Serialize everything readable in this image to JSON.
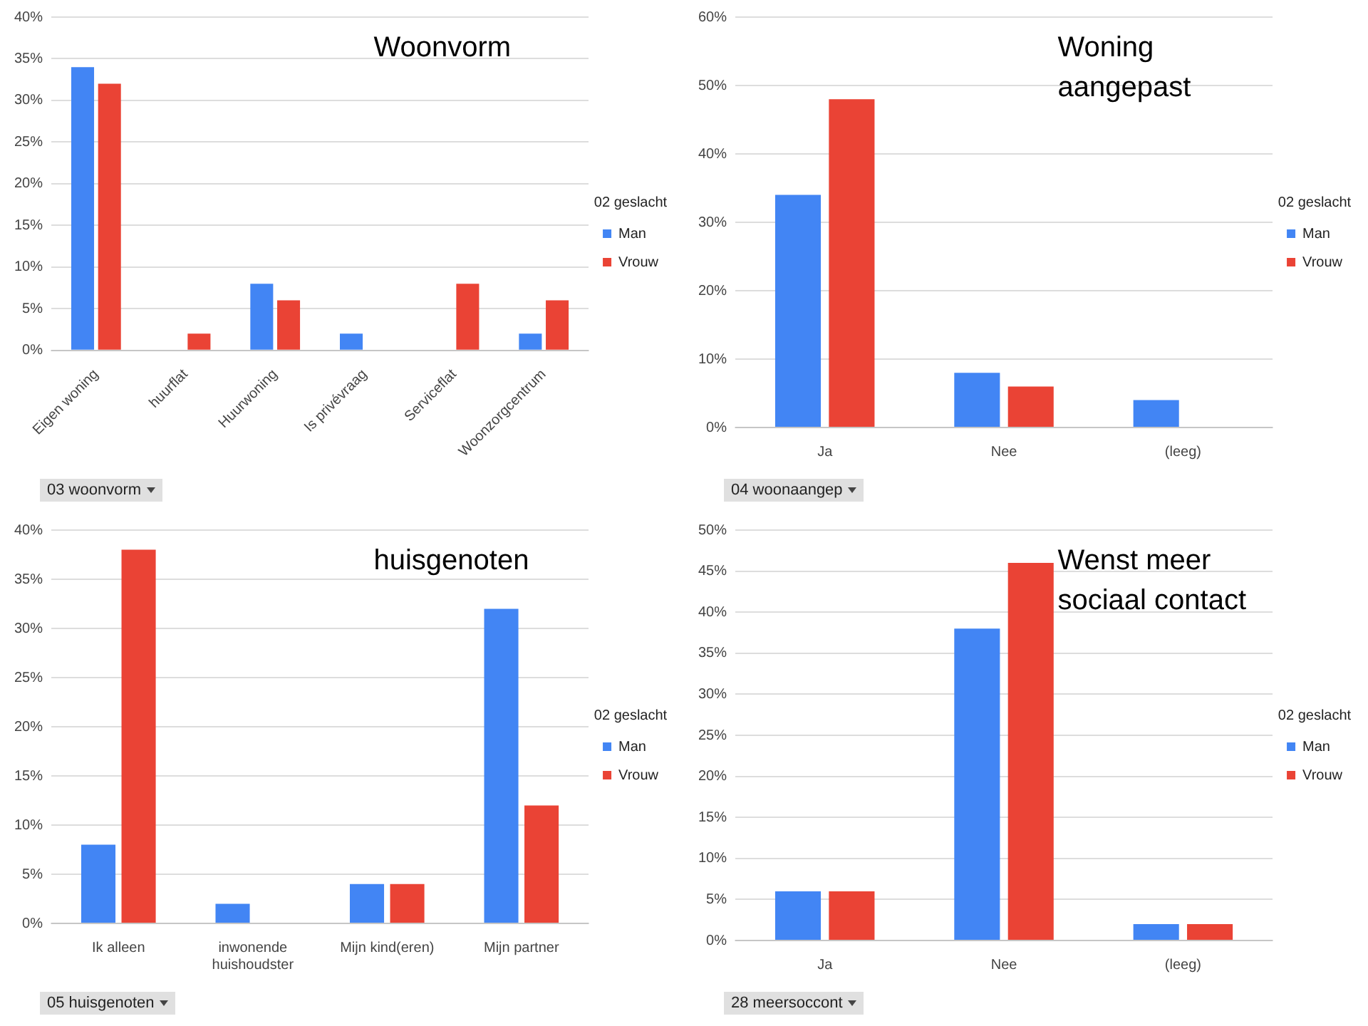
{
  "chart_data": [
    {
      "type": "bar",
      "title": "Woonvorm",
      "legend_title": "02 geslacht",
      "annotations": [
        "03 woonvorm"
      ],
      "categories": [
        "Eigen woning",
        "huurflat",
        "Huurwoning",
        "Is privévraag",
        "Serviceflat",
        "Woonzorgcentrum"
      ],
      "series": [
        {
          "name": "Man",
          "color": "#4285f4",
          "values": [
            34,
            null,
            8,
            2,
            null,
            2
          ]
        },
        {
          "name": "Vrouw",
          "color": "#ea4335",
          "values": [
            32,
            2,
            6,
            null,
            8,
            6
          ]
        }
      ],
      "ylim": [
        0,
        40
      ],
      "yticks": [
        {
          "value": 0,
          "label": "0%"
        },
        {
          "value": 5,
          "label": "5%"
        },
        {
          "value": 10,
          "label": "10%"
        },
        {
          "value": 15,
          "label": "15%"
        },
        {
          "value": 20,
          "label": "20%"
        },
        {
          "value": 25,
          "label": "25%"
        },
        {
          "value": 30,
          "label": "30%"
        },
        {
          "value": 35,
          "label": "35%"
        },
        {
          "value": 40,
          "label": "40%"
        }
      ],
      "grid": "y",
      "legend": "right"
    },
    {
      "type": "bar",
      "title": "Woning aangepast",
      "legend_title": "02 geslacht",
      "annotations": [
        "04 woonaangep"
      ],
      "categories": [
        "Ja",
        "Nee",
        "(leeg)"
      ],
      "series": [
        {
          "name": "Man",
          "color": "#4285f4",
          "values": [
            34,
            8,
            4
          ]
        },
        {
          "name": "Vrouw",
          "color": "#ea4335",
          "values": [
            48,
            6,
            null
          ]
        }
      ],
      "ylim": [
        0,
        60
      ],
      "yticks": [
        {
          "value": 0,
          "label": "0%"
        },
        {
          "value": 10,
          "label": "10%"
        },
        {
          "value": 20,
          "label": "20%"
        },
        {
          "value": 30,
          "label": "30%"
        },
        {
          "value": 40,
          "label": "40%"
        },
        {
          "value": 50,
          "label": "50%"
        },
        {
          "value": 60,
          "label": "60%"
        }
      ],
      "grid": "y",
      "legend": "right"
    },
    {
      "type": "bar",
      "title": "huisgenoten",
      "legend_title": "02 geslacht",
      "annotations": [
        "05 huisgenoten"
      ],
      "categories": [
        "Ik alleen",
        "inwonende huishoudster",
        "Mijn kind(eren)",
        "Mijn partner"
      ],
      "series": [
        {
          "name": "Man",
          "color": "#4285f4",
          "values": [
            8,
            2,
            4,
            32
          ]
        },
        {
          "name": "Vrouw",
          "color": "#ea4335",
          "values": [
            38,
            null,
            4,
            12
          ]
        }
      ],
      "ylim": [
        0,
        40
      ],
      "yticks": [
        {
          "value": 0,
          "label": "0%"
        },
        {
          "value": 5,
          "label": "5%"
        },
        {
          "value": 10,
          "label": "10%"
        },
        {
          "value": 15,
          "label": "15%"
        },
        {
          "value": 20,
          "label": "20%"
        },
        {
          "value": 25,
          "label": "25%"
        },
        {
          "value": 30,
          "label": "30%"
        },
        {
          "value": 35,
          "label": "35%"
        },
        {
          "value": 40,
          "label": "40%"
        }
      ],
      "grid": "y",
      "legend": "right"
    },
    {
      "type": "bar",
      "title": "Wenst meer sociaal contact",
      "legend_title": "02 geslacht",
      "annotations": [
        "28 meersoccont"
      ],
      "categories": [
        "Ja",
        "Nee",
        "(leeg)"
      ],
      "series": [
        {
          "name": "Man",
          "color": "#4285f4",
          "values": [
            6,
            38,
            2
          ]
        },
        {
          "name": "Vrouw",
          "color": "#ea4335",
          "values": [
            6,
            46,
            2
          ]
        }
      ],
      "ylim": [
        0,
        50
      ],
      "yticks": [
        {
          "value": 0,
          "label": "0%"
        },
        {
          "value": 5,
          "label": "5%"
        },
        {
          "value": 10,
          "label": "10%"
        },
        {
          "value": 15,
          "label": "15%"
        },
        {
          "value": 20,
          "label": "20%"
        },
        {
          "value": 25,
          "label": "25%"
        },
        {
          "value": 30,
          "label": "30%"
        },
        {
          "value": 35,
          "label": "35%"
        },
        {
          "value": 40,
          "label": "40%"
        },
        {
          "value": 45,
          "label": "45%"
        },
        {
          "value": 50,
          "label": "50%"
        }
      ],
      "grid": "y",
      "legend": "right"
    }
  ]
}
